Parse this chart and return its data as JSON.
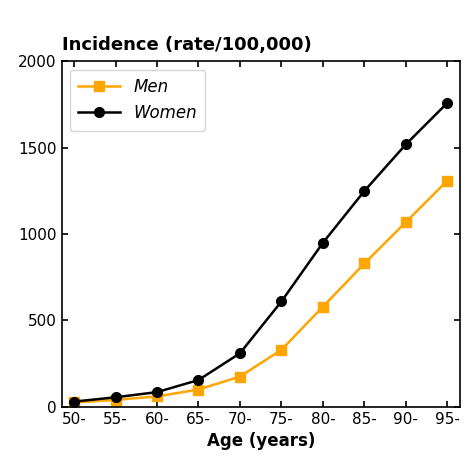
{
  "age_labels": [
    "50-",
    "55-",
    "60-",
    "65-",
    "70-",
    "75-",
    "80-",
    "85-",
    "90-",
    "95-"
  ],
  "age_x": [
    0,
    1,
    2,
    3,
    4,
    5,
    6,
    7,
    8,
    9
  ],
  "men_values": [
    25,
    40,
    60,
    100,
    175,
    330,
    580,
    830,
    1070,
    1310
  ],
  "women_values": [
    30,
    55,
    85,
    155,
    310,
    610,
    950,
    1250,
    1520,
    1760
  ],
  "men_color": "#FFA500",
  "women_color": "#000000",
  "title": "Incidence (rate/100,000)",
  "xlabel": "Age (years)",
  "ylim": [
    0,
    2000
  ],
  "yticks": [
    0,
    500,
    1000,
    1500,
    2000
  ],
  "title_fontsize": 13,
  "label_fontsize": 12,
  "tick_fontsize": 11,
  "legend_men": "Men",
  "legend_women": "Women",
  "marker_men": "s",
  "marker_women": "o",
  "linewidth": 1.8,
  "markersize": 7
}
